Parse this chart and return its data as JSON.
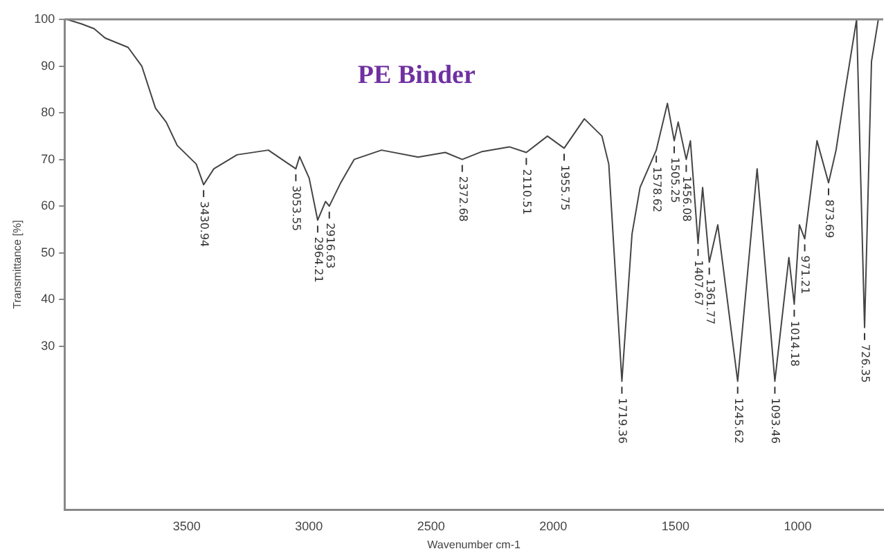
{
  "chart_data": {
    "type": "line",
    "title": "PE Binder",
    "xlabel": "Wavenumber cm-1",
    "ylabel": "Transmittance [%]",
    "x": [
      3990,
      3929,
      3879,
      3834,
      3740,
      3684,
      3628,
      3584,
      3539,
      3461,
      3430.94,
      3389,
      3294,
      3166,
      3110,
      3053.55,
      3038,
      2999,
      2964.21,
      2932,
      2916.63,
      2870,
      2815,
      2703,
      2553,
      2442,
      2372.68,
      2291,
      2180,
      2110.51,
      2024,
      1955.75,
      1873,
      1801,
      1773,
      1719.36,
      1678,
      1645,
      1578.62,
      1533,
      1505.25,
      1489,
      1456.08,
      1439,
      1407.67,
      1389,
      1361.77,
      1327,
      1245.62,
      1166,
      1093.46,
      1036,
      1014.18,
      993,
      971.21,
      921,
      873.69,
      843,
      809,
      759,
      726.35,
      698,
      670
    ],
    "series": [
      {
        "color": "#444444",
        "values": [
          100,
          99,
          98,
          96,
          94,
          90,
          81,
          78,
          73,
          69,
          64.6,
          68,
          71,
          72,
          70,
          68,
          70.6,
          66,
          57,
          61,
          60,
          65,
          70,
          72,
          70.5,
          71.5,
          70,
          71.7,
          72.7,
          71.5,
          75,
          72.4,
          78.7,
          75,
          69,
          22.5,
          54,
          64,
          72,
          82,
          74,
          78,
          70,
          74,
          52,
          64,
          48,
          56,
          22.5,
          68,
          22.5,
          49,
          39,
          56,
          53,
          74,
          65,
          72,
          83.7,
          100,
          34,
          91,
          100
        ]
      }
    ],
    "xlim": [
      4000,
      650
    ],
    "xticks": [
      3500,
      3000,
      2500,
      2000,
      1500,
      1000
    ],
    "ylim": [
      -5,
      100
    ],
    "yticks": [
      30,
      40,
      50,
      60,
      70,
      80,
      90,
      100
    ],
    "grid": false,
    "legend": false,
    "marker": "none",
    "line_style": "solid",
    "annotations": [
      {
        "text": "3430.94",
        "x": 3430.94,
        "y": 64.6
      },
      {
        "text": "3053.55",
        "x": 3053.55,
        "y": 68
      },
      {
        "text": "2964.21",
        "x": 2964.21,
        "y": 57
      },
      {
        "text": "2916.63",
        "x": 2916.63,
        "y": 60
      },
      {
        "text": "2372.68",
        "x": 2372.68,
        "y": 70
      },
      {
        "text": "2110.51",
        "x": 2110.51,
        "y": 71.5
      },
      {
        "text": "1955.75",
        "x": 1955.75,
        "y": 72.4
      },
      {
        "text": "1719.36",
        "x": 1719.36,
        "y": 22.5
      },
      {
        "text": "1578.62",
        "x": 1578.62,
        "y": 72
      },
      {
        "text": "1505.25",
        "x": 1505.25,
        "y": 74
      },
      {
        "text": "1456.08",
        "x": 1456.08,
        "y": 70
      },
      {
        "text": "1407.67",
        "x": 1407.67,
        "y": 52
      },
      {
        "text": "1361.77",
        "x": 1361.77,
        "y": 48
      },
      {
        "text": "1245.62",
        "x": 1245.62,
        "y": 22.5
      },
      {
        "text": "1093.46",
        "x": 1093.46,
        "y": 22.5
      },
      {
        "text": "1014.18",
        "x": 1014.18,
        "y": 39
      },
      {
        "text": "971.21",
        "x": 971.21,
        "y": 53
      },
      {
        "text": "873.69",
        "x": 873.69,
        "y": 65
      },
      {
        "text": "726.35",
        "x": 726.35,
        "y": 34
      }
    ]
  }
}
